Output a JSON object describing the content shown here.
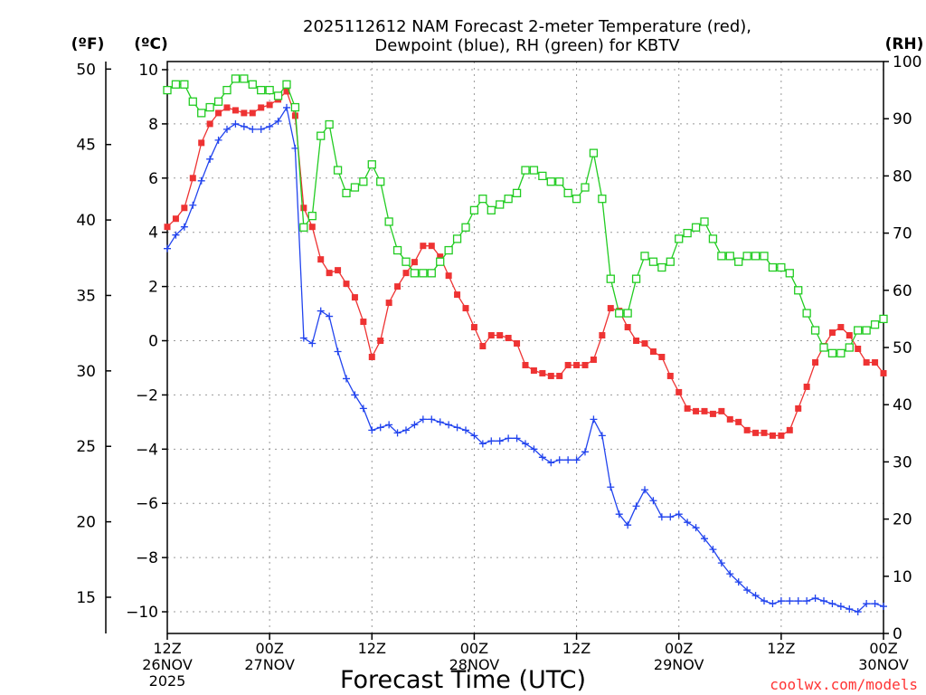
{
  "chart_data": {
    "type": "line",
    "title": [
      "2025112612 NAM Forecast 2-meter Temperature (red),",
      "Dewpoint (blue), RH (green) for KBTV"
    ],
    "xlabel": "Forecast Time (UTC)",
    "credit": "coolwx.com/models",
    "axes": {
      "fahrenheit": {
        "label": "(ºF)",
        "ticks": [
          15,
          20,
          25,
          30,
          35,
          40,
          45,
          50
        ],
        "range": [
          12.6,
          50.5
        ]
      },
      "celsius": {
        "label": "(ºC)",
        "ticks": [
          -10,
          -8,
          -6,
          -4,
          -2,
          0,
          2,
          4,
          6,
          8,
          10
        ],
        "range": [
          -10.8,
          10.3
        ]
      },
      "rh": {
        "label": "(RH)",
        "ticks": [
          0,
          10,
          20,
          30,
          40,
          50,
          60,
          70,
          80,
          90,
          100
        ],
        "range": [
          0,
          100
        ]
      },
      "x_hours_range": [
        0,
        84
      ],
      "x_ticks": [
        {
          "hour": 0,
          "lines": [
            "12Z",
            "26NOV",
            "2025"
          ]
        },
        {
          "hour": 12,
          "lines": [
            "00Z",
            "27NOV"
          ]
        },
        {
          "hour": 24,
          "lines": [
            "12Z"
          ]
        },
        {
          "hour": 36,
          "lines": [
            "00Z",
            "28NOV"
          ]
        },
        {
          "hour": 48,
          "lines": [
            "12Z"
          ]
        },
        {
          "hour": 60,
          "lines": [
            "00Z",
            "29NOV"
          ]
        },
        {
          "hour": 72,
          "lines": [
            "12Z"
          ]
        },
        {
          "hour": 84,
          "lines": [
            "00Z",
            "30NOV"
          ]
        }
      ]
    },
    "x_hours_step": 1,
    "series": [
      {
        "name": "2-meter Temperature",
        "unit": "C",
        "color": "#ee3333",
        "marker": "filled-square",
        "values": [
          4.2,
          4.5,
          4.9,
          6.0,
          7.3,
          8.0,
          8.4,
          8.6,
          8.5,
          8.4,
          8.4,
          8.6,
          8.7,
          8.9,
          9.2,
          8.3,
          4.9,
          4.2,
          3.0,
          2.5,
          2.6,
          2.1,
          1.6,
          0.7,
          -0.6,
          0.0,
          1.4,
          2.0,
          2.5,
          2.9,
          3.5,
          3.5,
          3.1,
          2.4,
          1.7,
          1.2,
          0.5,
          -0.2,
          0.2,
          0.2,
          0.1,
          -0.1,
          -0.9,
          -1.1,
          -1.2,
          -1.3,
          -1.3,
          -0.9,
          -0.9,
          -0.9,
          -0.7,
          0.2,
          1.2,
          1.1,
          0.5,
          0.0,
          -0.1,
          -0.4,
          -0.6,
          -1.3,
          -1.9,
          -2.5,
          -2.6,
          -2.6,
          -2.7,
          -2.6,
          -2.9,
          -3.0,
          -3.3,
          -3.4,
          -3.4,
          -3.5,
          -3.5,
          -3.3,
          -2.5,
          -1.7,
          -0.8,
          -0.2,
          0.3,
          0.5,
          0.2,
          -0.3,
          -0.8,
          -0.8,
          -1.2
        ]
      },
      {
        "name": "Dewpoint",
        "unit": "C",
        "color": "#2244ee",
        "marker": "plus",
        "values": [
          3.4,
          3.9,
          4.2,
          5.0,
          5.9,
          6.7,
          7.4,
          7.8,
          8.0,
          7.9,
          7.8,
          7.8,
          7.9,
          8.1,
          8.6,
          7.1,
          0.1,
          -0.1,
          1.1,
          0.9,
          -0.4,
          -1.4,
          -2.0,
          -2.5,
          -3.3,
          -3.2,
          -3.1,
          -3.4,
          -3.3,
          -3.1,
          -2.9,
          -2.9,
          -3.0,
          -3.1,
          -3.2,
          -3.3,
          -3.5,
          -3.8,
          -3.7,
          -3.7,
          -3.6,
          -3.6,
          -3.8,
          -4.0,
          -4.3,
          -4.5,
          -4.4,
          -4.4,
          -4.4,
          -4.1,
          -2.9,
          -3.5,
          -5.4,
          -6.4,
          -6.8,
          -6.1,
          -5.5,
          -5.9,
          -6.5,
          -6.5,
          -6.4,
          -6.7,
          -6.9,
          -7.3,
          -7.7,
          -8.2,
          -8.6,
          -8.9,
          -9.2,
          -9.4,
          -9.6,
          -9.7,
          -9.6,
          -9.6,
          -9.6,
          -9.6,
          -9.5,
          -9.6,
          -9.7,
          -9.8,
          -9.9,
          -10.0,
          -9.7,
          -9.7,
          -9.8
        ]
      },
      {
        "name": "RH",
        "unit": "%",
        "color": "#22cc22",
        "marker": "open-square",
        "values": [
          95,
          96,
          96,
          93,
          91,
          92,
          93,
          95,
          97,
          97,
          96,
          95,
          95,
          94,
          96,
          92,
          71,
          73,
          87,
          89,
          81,
          77,
          78,
          79,
          82,
          79,
          72,
          67,
          65,
          63,
          63,
          63,
          65,
          67,
          69,
          71,
          74,
          76,
          74,
          75,
          76,
          77,
          81,
          81,
          80,
          79,
          79,
          77,
          76,
          78,
          84,
          76,
          62,
          56,
          56,
          62,
          66,
          65,
          64,
          65,
          69,
          70,
          71,
          72,
          69,
          66,
          66,
          65,
          66,
          66,
          66,
          64,
          64,
          63,
          60,
          56,
          53,
          50,
          49,
          49,
          50,
          53,
          53,
          54,
          55
        ]
      }
    ]
  }
}
